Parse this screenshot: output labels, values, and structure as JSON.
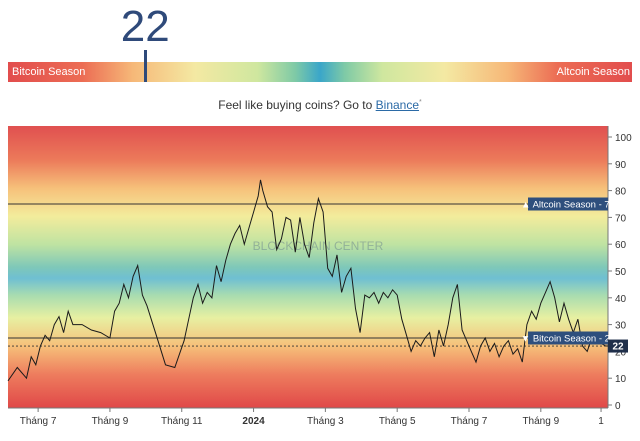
{
  "indicator": {
    "value": "22",
    "bar_left_label": "Bitcoin Season",
    "bar_right_label": "Altcoin Season",
    "marker_fraction": 0.22
  },
  "promo": {
    "text": "Feel like buying coins? Go to ",
    "link": "Binance",
    "sup": "*"
  },
  "chart_data": {
    "type": "line",
    "title": "",
    "xlabel": "",
    "ylabel": "",
    "ylim": [
      0,
      100
    ],
    "y_ticks": [
      "0",
      "10",
      "20",
      "30",
      "40",
      "50",
      "60",
      "70",
      "80",
      "90",
      "100"
    ],
    "x_ticks": [
      "Tháng 7",
      "Tháng 9",
      "Tháng 11",
      "2024",
      "Tháng 3",
      "Tháng 5",
      "Tháng 7",
      "Tháng 9",
      "1"
    ],
    "x_ticks_pos": [
      5,
      36,
      67,
      98,
      129,
      160,
      191,
      222,
      248
    ],
    "x_range": [
      -8,
      251
    ],
    "grid": false,
    "reference_lines": [
      {
        "value": 75,
        "label": "▲ Altcoin Season - 75"
      },
      {
        "value": 25,
        "label": "▼ Bitcoin Season - 25"
      }
    ],
    "current_value": {
      "value": 22,
      "label": "22"
    },
    "watermark": "BLOCKCHAIN CENTER",
    "series": [
      {
        "x": [
          -8,
          -4,
          0,
          2,
          4,
          6,
          8,
          10,
          12,
          14,
          16,
          18,
          20,
          24,
          28,
          32,
          36,
          38,
          40,
          42,
          44,
          46,
          48,
          50,
          52,
          56,
          60,
          64,
          68,
          70,
          72,
          74,
          76,
          78,
          80,
          82,
          84,
          86,
          88,
          90,
          92,
          94,
          96,
          98,
          100,
          101,
          102,
          104,
          106,
          108,
          110,
          112,
          114,
          116,
          118,
          120,
          122,
          124,
          126,
          128,
          130,
          132,
          134,
          136,
          138,
          140,
          142,
          144,
          146,
          148,
          150,
          152,
          154,
          156,
          158,
          160,
          162,
          164,
          166,
          168,
          170,
          172,
          174,
          176,
          178,
          180,
          182,
          184,
          186,
          188,
          190,
          192,
          194,
          196,
          198,
          200,
          202,
          204,
          206,
          208,
          210,
          212,
          214,
          216,
          218,
          220,
          222,
          224,
          226,
          228,
          230,
          232,
          234,
          236,
          238,
          240,
          242,
          244,
          246,
          248,
          250,
          251
        ],
        "y": [
          9,
          14,
          10,
          18,
          15,
          22,
          26,
          24,
          30,
          33,
          27,
          35,
          30,
          30,
          28,
          27,
          25,
          35,
          38,
          45,
          40,
          48,
          52,
          41,
          37,
          26,
          15,
          14,
          24,
          32,
          40,
          45,
          38,
          42,
          40,
          52,
          46,
          54,
          60,
          64,
          67,
          60,
          66,
          72,
          78,
          84,
          80,
          74,
          72,
          58,
          62,
          70,
          69,
          57,
          70,
          60,
          55,
          68,
          77,
          72,
          51,
          48,
          56,
          42,
          48,
          51,
          36,
          27,
          41,
          40,
          42,
          38,
          42,
          40,
          43,
          41,
          32,
          26,
          20,
          24,
          22,
          25,
          27,
          18,
          28,
          22,
          30,
          40,
          45,
          28,
          24,
          20,
          16,
          22,
          25,
          20,
          23,
          18,
          22,
          24,
          19,
          21,
          16,
          30,
          35,
          32,
          38,
          42,
          46,
          40,
          31,
          38,
          32,
          27,
          32,
          22,
          20,
          25,
          24,
          23,
          22,
          22
        ]
      }
    ]
  }
}
